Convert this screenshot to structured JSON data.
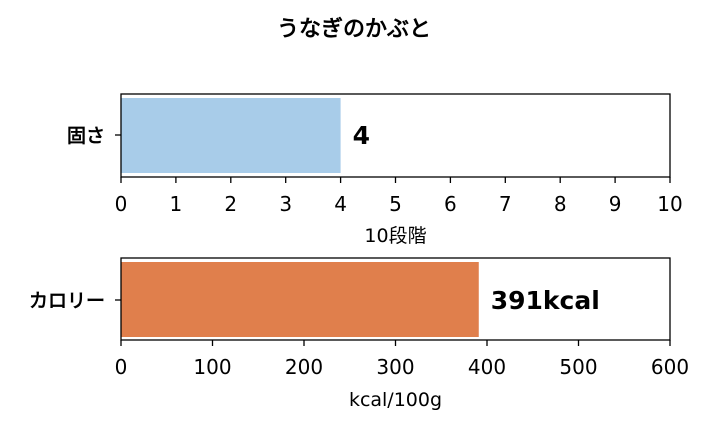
{
  "title": "うなぎのかぶと",
  "chart_data": [
    {
      "type": "bar",
      "orientation": "horizontal",
      "categories": [
        "固さ"
      ],
      "values": [
        4
      ],
      "value_label": "4",
      "xlabel": "10段階",
      "xlim": [
        0,
        10
      ],
      "xticks": [
        "0",
        "1",
        "2",
        "3",
        "4",
        "5",
        "6",
        "7",
        "8",
        "9",
        "10"
      ],
      "bar_color": "#a8cce9",
      "grid": false
    },
    {
      "type": "bar",
      "orientation": "horizontal",
      "categories": [
        "カロリー"
      ],
      "values": [
        391
      ],
      "value_label": "391kcal",
      "xlabel": "kcal/100g",
      "xlim": [
        0,
        600
      ],
      "xticks": [
        "0",
        "100",
        "200",
        "300",
        "400",
        "500",
        "600"
      ],
      "bar_color": "#e07f4c",
      "grid": false
    }
  ]
}
